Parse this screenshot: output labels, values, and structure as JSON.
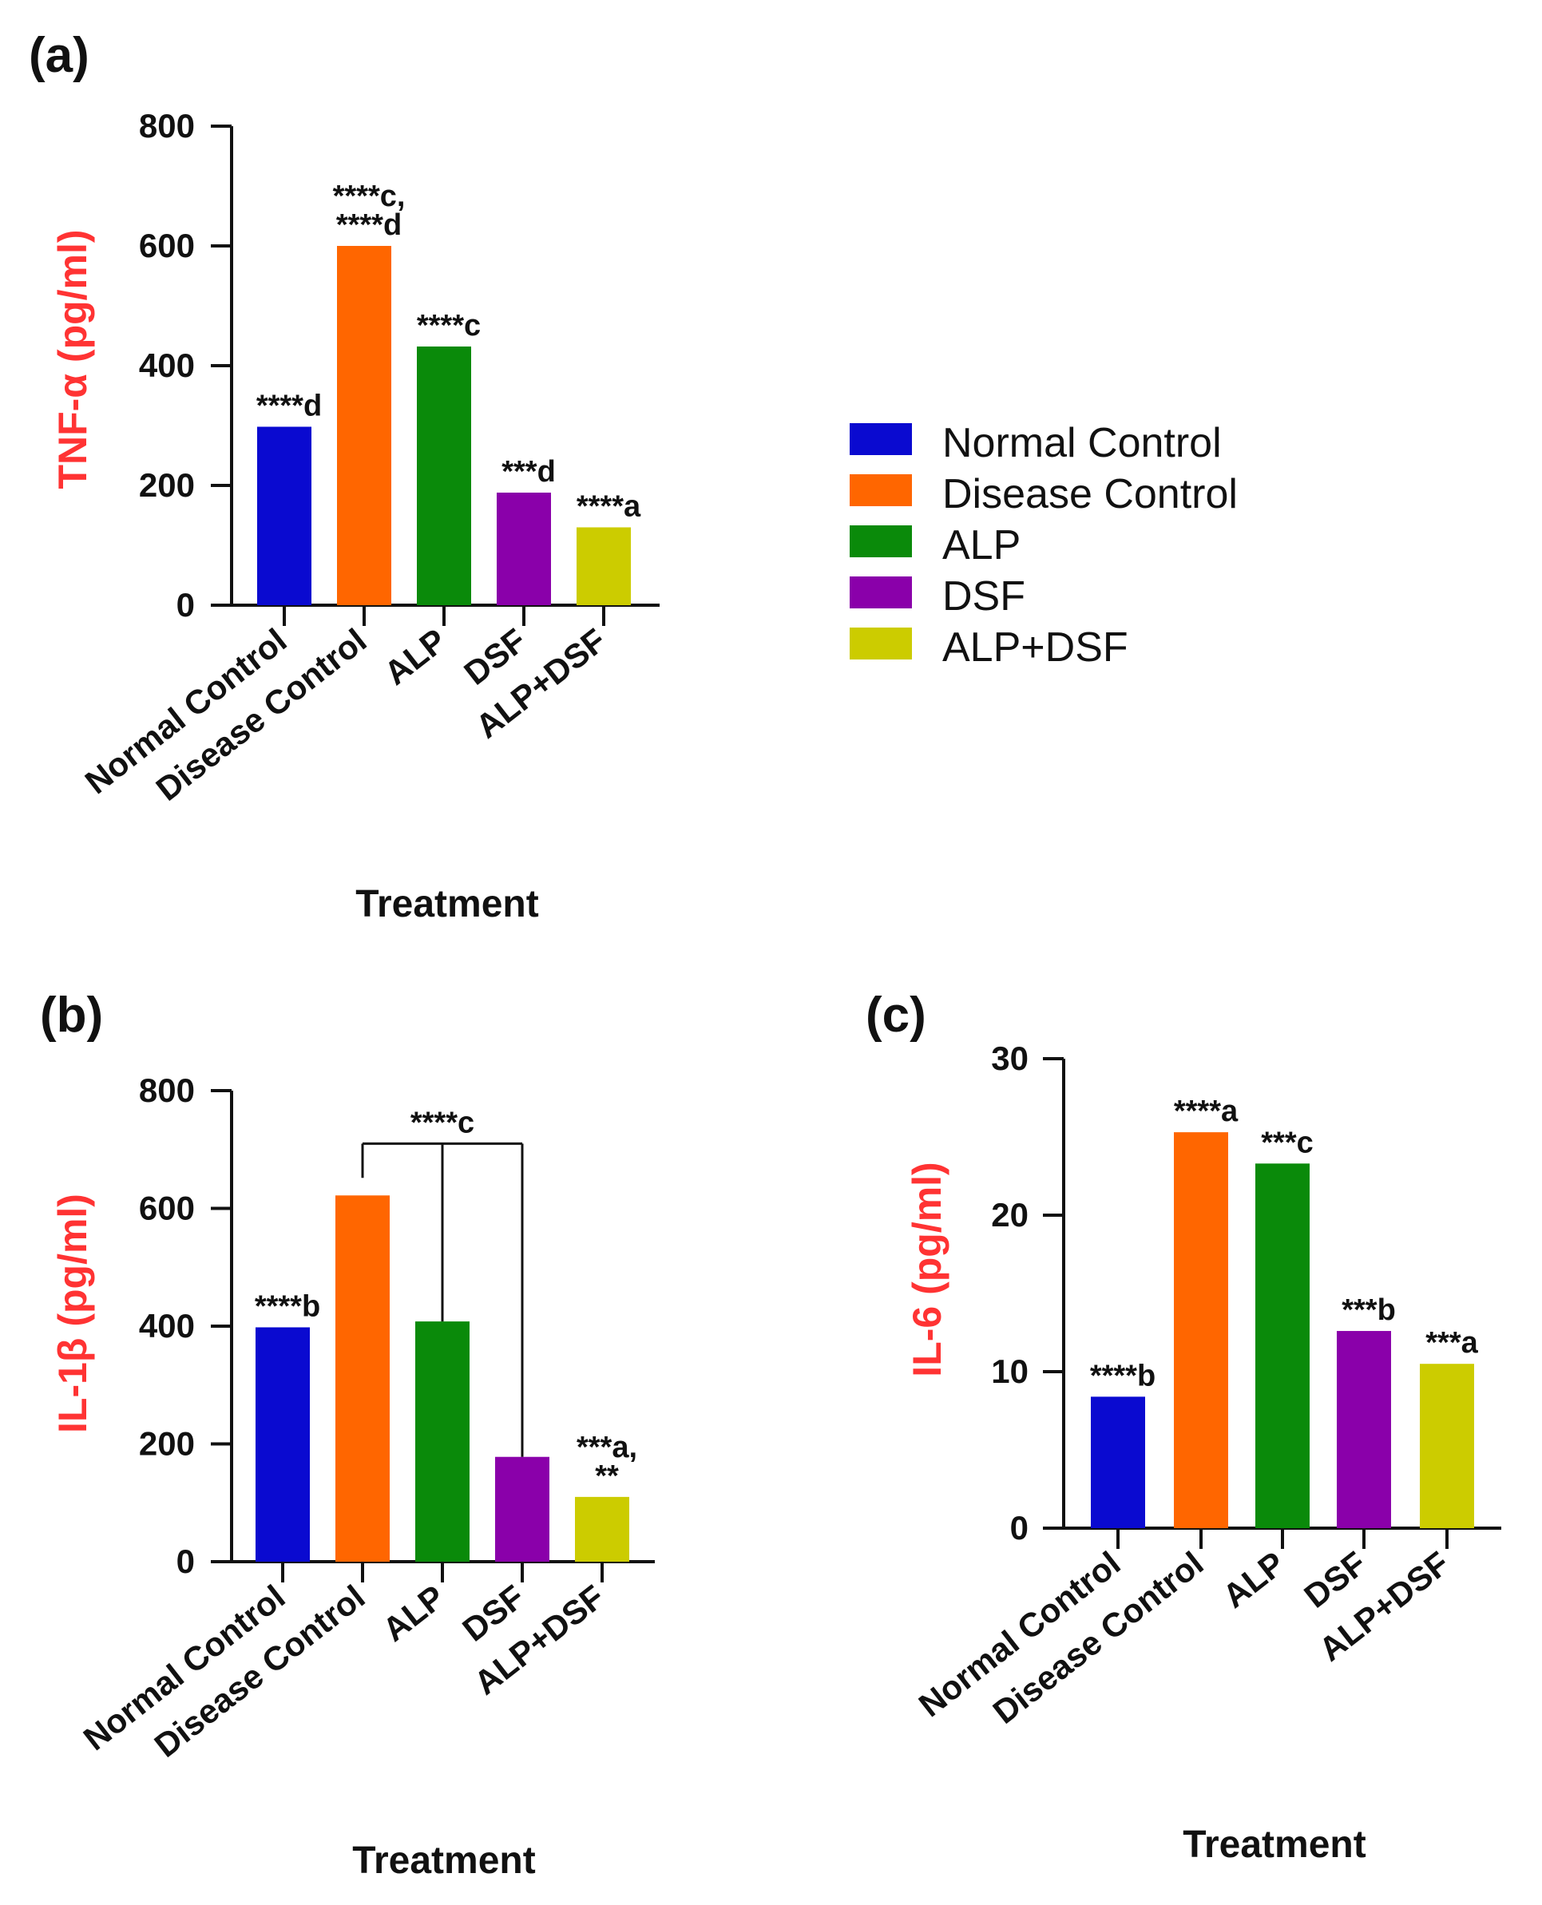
{
  "colors": {
    "Normal Control": "#0a0ad0",
    "Disease Control": "#ff6600",
    "ALP": "#0a8a0a",
    "DSF": "#8a00aa",
    "ALP+DSF": "#cccc00",
    "ylabel": "#ff3333"
  },
  "legend": {
    "items": [
      "Normal Control",
      "Disease Control",
      "ALP",
      "DSF",
      "ALP+DSF"
    ]
  },
  "chart_data": [
    {
      "panel": "(a)",
      "type": "bar",
      "categories": [
        "Normal Control",
        "Disease Control",
        "ALP",
        "DSF",
        "ALP+DSF"
      ],
      "values": [
        298,
        600,
        432,
        188,
        130
      ],
      "ylabel": "TNF-α (pg/ml)",
      "xlabel": "Treatment",
      "ylim": [
        0,
        800
      ],
      "yticks": [
        0,
        200,
        400,
        600,
        800
      ],
      "annotations": [
        {
          "lines": [
            "****d"
          ]
        },
        {
          "lines": [
            "****c,",
            "****d"
          ]
        },
        {
          "lines": [
            "****c"
          ]
        },
        {
          "lines": [
            "***d"
          ]
        },
        {
          "lines": [
            "****a"
          ]
        }
      ]
    },
    {
      "panel": "(b)",
      "type": "bar",
      "categories": [
        "Normal Control",
        "Disease Control",
        "ALP",
        "DSF",
        "ALP+DSF"
      ],
      "values": [
        398,
        622,
        408,
        178,
        110
      ],
      "ylabel": "IL-1β (pg/ml)",
      "xlabel": "Treatment",
      "ylim": [
        0,
        800
      ],
      "yticks": [
        0,
        200,
        400,
        600,
        800
      ],
      "annotations": [
        {
          "lines": [
            "****b"
          ]
        },
        {
          "lines": []
        },
        {
          "lines": []
        },
        {
          "lines": []
        },
        {
          "lines": [
            "***a,",
            "**"
          ]
        }
      ],
      "bracket": {
        "label": "****c"
      }
    },
    {
      "panel": "(c)",
      "type": "bar",
      "categories": [
        "Normal Control",
        "Disease Control",
        "ALP",
        "DSF",
        "ALP+DSF"
      ],
      "values": [
        8.4,
        25.3,
        23.3,
        12.6,
        10.5
      ],
      "ylabel": "IL-6 (pg/ml)",
      "xlabel": "Treatment",
      "ylim": [
        0,
        30
      ],
      "yticks": [
        0,
        10,
        20,
        30
      ],
      "annotations": [
        {
          "lines": [
            "****b"
          ]
        },
        {
          "lines": [
            "****a"
          ]
        },
        {
          "lines": [
            "***c"
          ]
        },
        {
          "lines": [
            "***b"
          ]
        },
        {
          "lines": [
            "***a"
          ]
        }
      ]
    }
  ]
}
